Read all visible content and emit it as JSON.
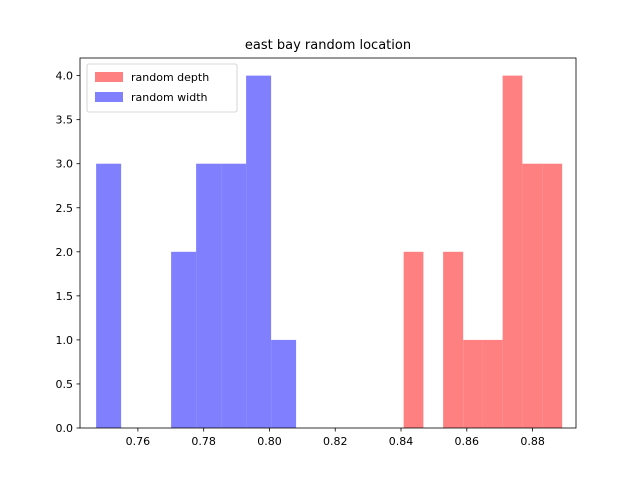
{
  "chart_data": {
    "type": "bar",
    "title": "east bay random location",
    "xlabel": "",
    "ylabel": "",
    "xlim": [
      0.7424,
      0.8932
    ],
    "ylim": [
      0,
      4.2
    ],
    "xticks": [
      0.76,
      0.78,
      0.8,
      0.82,
      0.84,
      0.86,
      0.88
    ],
    "xtick_labels": [
      "0.76",
      "0.78",
      "0.80",
      "0.82",
      "0.84",
      "0.86",
      "0.88"
    ],
    "yticks": [
      0,
      0.5,
      1,
      1.5,
      2,
      2.5,
      3,
      3.5,
      4
    ],
    "ytick_labels": [
      "0.0",
      "0.5",
      "1.0",
      "1.5",
      "2.0",
      "2.5",
      "3.0",
      "3.5",
      "4.0"
    ],
    "legend": {
      "placement": "upper-left"
    },
    "grid": false,
    "series": [
      {
        "name": "random depth",
        "color": "#ff8080",
        "bins": [
          {
            "x0": 0.8408,
            "x1": 0.8468,
            "value": 2
          },
          {
            "x0": 0.8528,
            "x1": 0.8589,
            "value": 2
          },
          {
            "x0": 0.8589,
            "x1": 0.8649,
            "value": 1
          },
          {
            "x0": 0.8649,
            "x1": 0.8709,
            "value": 1
          },
          {
            "x0": 0.8709,
            "x1": 0.8769,
            "value": 4
          },
          {
            "x0": 0.8769,
            "x1": 0.8829,
            "value": 3
          },
          {
            "x0": 0.8829,
            "x1": 0.889,
            "value": 3
          }
        ]
      },
      {
        "name": "random width",
        "color": "#8080ff",
        "bins": [
          {
            "x0": 0.7473,
            "x1": 0.7549,
            "value": 3
          },
          {
            "x0": 0.7701,
            "x1": 0.7777,
            "value": 2
          },
          {
            "x0": 0.7777,
            "x1": 0.7853,
            "value": 3
          },
          {
            "x0": 0.7853,
            "x1": 0.7929,
            "value": 3
          },
          {
            "x0": 0.7929,
            "x1": 0.8005,
            "value": 4
          },
          {
            "x0": 0.8005,
            "x1": 0.8081,
            "value": 1
          }
        ]
      }
    ]
  }
}
